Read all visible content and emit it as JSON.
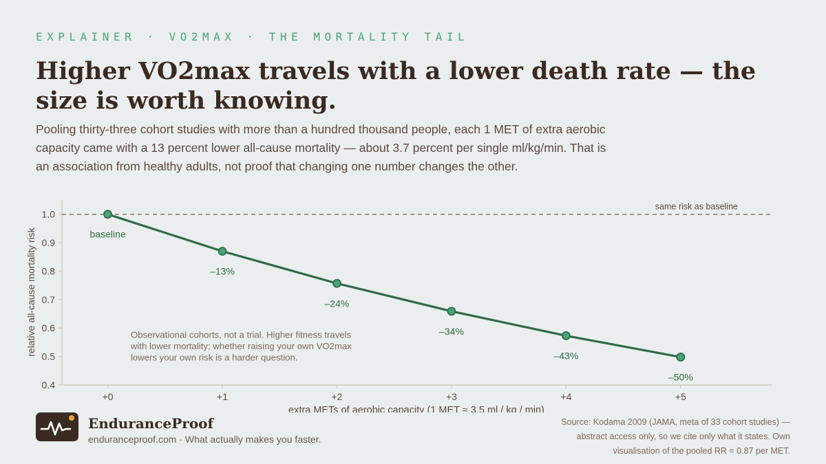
{
  "header": {
    "kicker": "EXPLAINER · VO2MAX · THE MORTALITY TAIL",
    "headline": "Higher VO2max travels with a lower death rate — the size is worth knowing.",
    "lede": "Pooling thirty-three cohort studies with more than a hundred thousand people, each 1 MET of extra aerobic capacity came with a 13 percent lower all-cause mortality — about 3.7 percent per single ml/kg/min. That is an association from healthy adults, not proof that changing one number changes the other."
  },
  "chart_data": {
    "type": "line",
    "x": [
      0,
      1,
      2,
      3,
      4,
      5
    ],
    "x_tick_labels": [
      "+0",
      "+1",
      "+2",
      "+3",
      "+4",
      "+5"
    ],
    "values": [
      1.0,
      0.87,
      0.757,
      0.659,
      0.573,
      0.498
    ],
    "point_labels": [
      "baseline",
      "–13%",
      "–24%",
      "–34%",
      "–43%",
      "–50%"
    ],
    "xlabel": "extra METs of aerobic capacity  (1 MET ≈ 3.5 ml / kg / min)",
    "ylabel": "relative all-cause mortality risk",
    "ylim": [
      0.4,
      1.05
    ],
    "xlim": [
      -0.4,
      5.8
    ],
    "y_ticks": [
      0.4,
      0.5,
      0.6,
      0.7,
      0.8,
      0.9,
      1.0
    ],
    "y_tick_labels": [
      "0.4",
      "0.5",
      "0.6",
      "0.7",
      "0.8",
      "0.9",
      "1.0"
    ],
    "reference_line": {
      "y": 1.0,
      "label": "same risk as baseline"
    },
    "annotation": {
      "x": 0.2,
      "y": 0.565,
      "lines": [
        "Observational cohorts, not a trial. Higher fitness travels",
        "with lower mortality; whether raising your own VO2max",
        "lowers your own risk is a harder question."
      ]
    },
    "colors": {
      "line": "#2e6b48",
      "point_fill": "#4aa579",
      "label": "#2e6b48",
      "reference": "#8a7a72",
      "axis": "#cfc8bd",
      "tick_text": "#5a4a42"
    }
  },
  "footer": {
    "brand_name": "EnduranceProof",
    "tagline": "enduranceproof.com · What actually makes you faster.",
    "source": "Source: Kodama 2009 (JAMA, meta of 33 cohort studies) — abstract access only, so we cite only what it states. Own visualisation of the pooled RR = 0.87 per MET."
  },
  "brand": {
    "icon": "heartbeat-logo-icon",
    "dot_color": "#e8a33d"
  }
}
